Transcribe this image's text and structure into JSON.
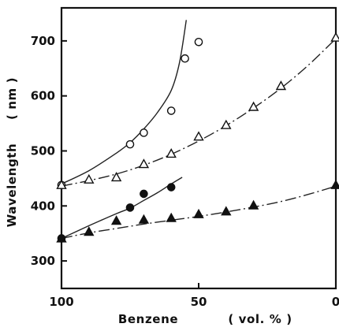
{
  "chart_data": {
    "type": "scatter",
    "title": "",
    "xlabel": "Benzene",
    "xlabel_unit": "( vol. % )",
    "ylabel": "Wavelength",
    "ylabel_unit": "( nm )",
    "xlim": [
      100,
      0
    ],
    "ylim": [
      250,
      760
    ],
    "x_ticks": [
      100,
      50,
      0
    ],
    "y_ticks": [
      300,
      400,
      500,
      600,
      700
    ],
    "grid": false,
    "legend": "none",
    "series": [
      {
        "marker": "open-circle",
        "line_style": "solid",
        "x": [
          100,
          75,
          70,
          60,
          55,
          50
        ],
        "y": [
          438,
          512,
          533,
          573,
          668,
          698
        ]
      },
      {
        "marker": "open-triangle",
        "line_style": "dash-dot",
        "x": [
          100,
          90,
          80,
          70,
          60,
          50,
          40,
          30,
          20,
          0
        ],
        "y": [
          438,
          448,
          452,
          476,
          495,
          526,
          547,
          580,
          618,
          706
        ]
      },
      {
        "marker": "filled-circle",
        "line_style": "solid",
        "x": [
          100,
          75,
          70,
          60
        ],
        "y": [
          341,
          397,
          422,
          434
        ]
      },
      {
        "marker": "filled-triangle",
        "line_style": "dash-dot",
        "x": [
          100,
          90,
          80,
          70,
          60,
          50,
          40,
          30,
          0
        ],
        "y": [
          341,
          353,
          373,
          375,
          378,
          385,
          390,
          401,
          438
        ]
      }
    ],
    "curves": [
      {
        "line_style": "solid",
        "x": [
          100,
          90,
          80,
          75,
          70,
          65,
          60,
          57,
          54.5
        ],
        "y": [
          440,
          464,
          496,
          515,
          540,
          570,
          610,
          660,
          738
        ]
      },
      {
        "line_style": "dash-dot",
        "x": [
          100,
          90,
          80,
          70,
          60,
          50,
          40,
          30,
          20,
          10,
          0
        ],
        "y": [
          436,
          446,
          458,
          474,
          494,
          518,
          546,
          578,
          614,
          656,
          704
        ]
      },
      {
        "line_style": "solid",
        "x": [
          100,
          90,
          80,
          75,
          70,
          65,
          60,
          56
        ],
        "y": [
          341,
          364,
          386,
          396,
          410,
          424,
          440,
          452
        ]
      },
      {
        "line_style": "dash-dot",
        "x": [
          100,
          90,
          80,
          70,
          60,
          50,
          40,
          30,
          20,
          10,
          0
        ],
        "y": [
          341,
          351,
          359,
          367,
          374,
          381,
          389,
          398,
          408,
          421,
          436
        ]
      }
    ]
  }
}
